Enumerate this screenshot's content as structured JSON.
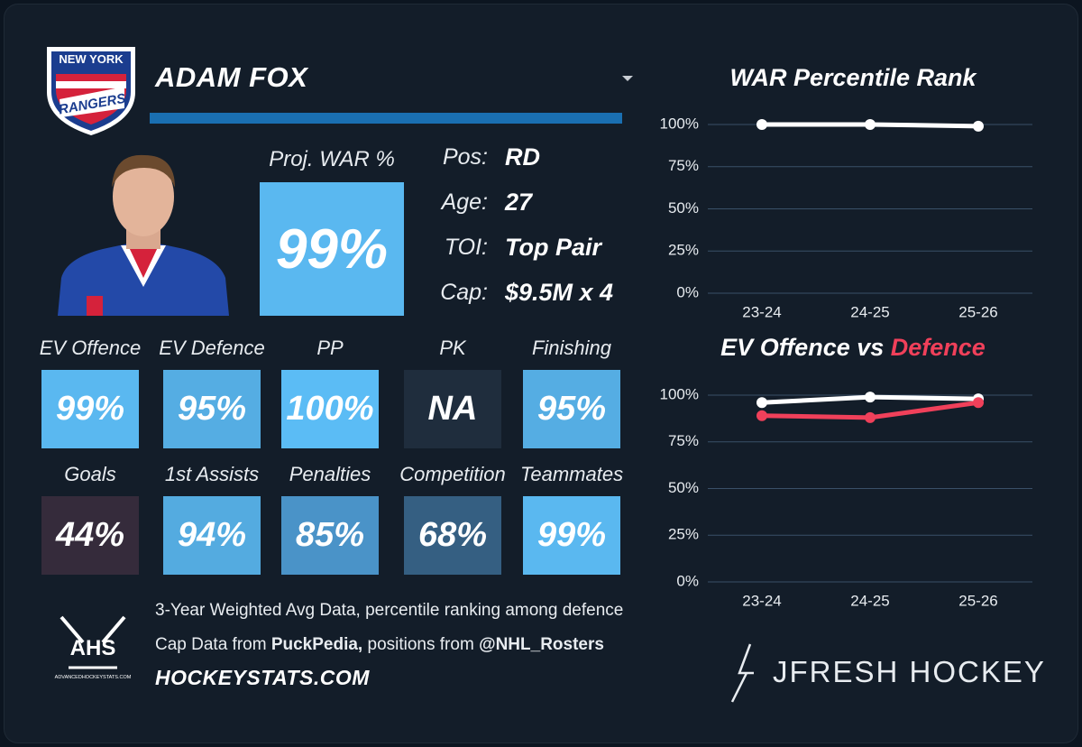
{
  "team_logo": {
    "line1": "NEW YORK",
    "line2": "RANGERS"
  },
  "player": {
    "name": "ADAM FOX"
  },
  "proj_war": {
    "label": "Proj. WAR %",
    "value": "99%",
    "color": "#5ab8f0"
  },
  "info": [
    {
      "label": "Pos:",
      "value": "RD"
    },
    {
      "label": "Age:",
      "value": "27"
    },
    {
      "label": "TOI:",
      "value": "Top Pair"
    },
    {
      "label": "Cap:",
      "value": "$9.5M x 4"
    }
  ],
  "tiles": [
    {
      "label": "EV Offence",
      "value": "99%",
      "color": "#5ab8f0"
    },
    {
      "label": "EV Defence",
      "value": "95%",
      "color": "#55ade3"
    },
    {
      "label": "PP",
      "value": "100%",
      "color": "#5bbcf5"
    },
    {
      "label": "PK",
      "value": "NA",
      "color": "#1f2d3d"
    },
    {
      "label": "Finishing",
      "value": "95%",
      "color": "#55ade3"
    },
    {
      "label": "Goals",
      "value": "44%",
      "color": "#352b3b"
    },
    {
      "label": "1st Assists",
      "value": "94%",
      "color": "#54abe0"
    },
    {
      "label": "Penalties",
      "value": "85%",
      "color": "#4a93c8"
    },
    {
      "label": "Competition",
      "value": "68%",
      "color": "#355f82"
    },
    {
      "label": "Teammates",
      "value": "99%",
      "color": "#5ab8f0"
    }
  ],
  "footer": {
    "line1": "3-Year Weighted Avg Data, percentile ranking among defence",
    "line2_a": "Cap Data from",
    "line2_b": "PuckPedia,",
    "line2_c": "positions from",
    "line2_d": "@NHL_Rosters",
    "site": "HOCKEYSTATS.COM",
    "ahs": "AHS",
    "ahs_sub": "ADVANCEDHOCKEYSTATS.COM",
    "brand": "JFRESH HOCKEY"
  },
  "chart_data": [
    {
      "type": "line",
      "title": "WAR Percentile Rank",
      "categories": [
        "23-24",
        "24-25",
        "25-26"
      ],
      "series": [
        {
          "color": "#ffffff",
          "values": [
            100,
            100,
            99
          ]
        }
      ],
      "ylim": [
        0,
        100
      ],
      "yticks": [
        {
          "value": 0,
          "label": "0%"
        },
        {
          "value": 25,
          "label": "25%"
        },
        {
          "value": 50,
          "label": "50%"
        },
        {
          "value": 75,
          "label": "75%"
        },
        {
          "value": 100,
          "label": "100%"
        }
      ],
      "grid": true
    },
    {
      "type": "line",
      "title_joiner": "vs",
      "categories": [
        "23-24",
        "24-25",
        "25-26"
      ],
      "series": [
        {
          "name": "EV Offence",
          "color": "#ffffff",
          "values": [
            96,
            99,
            98
          ]
        },
        {
          "name": "Defence",
          "color": "#f0405a",
          "values": [
            89,
            88,
            96
          ]
        }
      ],
      "ylim": [
        0,
        100
      ],
      "yticks": [
        {
          "value": 0,
          "label": "0%"
        },
        {
          "value": 25,
          "label": "25%"
        },
        {
          "value": 50,
          "label": "50%"
        },
        {
          "value": 75,
          "label": "75%"
        },
        {
          "value": 100,
          "label": "100%"
        }
      ],
      "grid": true
    }
  ]
}
